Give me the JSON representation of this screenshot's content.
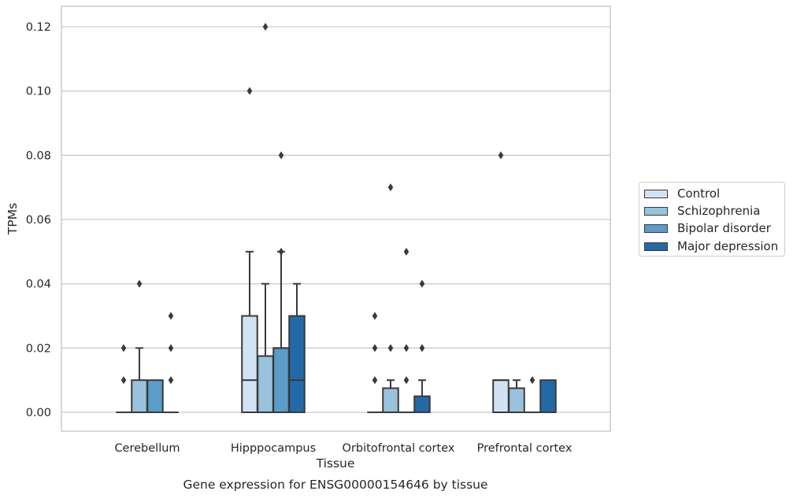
{
  "chart_data": {
    "type": "box",
    "title": "",
    "caption": "Gene expression for ENSG00000154646 by tissue",
    "xlabel": "Tissue",
    "ylabel": "TPMs",
    "ylim": [
      -0.006,
      0.1225
    ],
    "yticks": [
      0.0,
      0.02,
      0.04,
      0.06,
      0.08,
      0.1,
      0.12
    ],
    "ytick_labels": [
      "0.00",
      "0.02",
      "0.04",
      "0.06",
      "0.08",
      "0.10",
      "0.12"
    ],
    "grid": true,
    "legend_position": "right",
    "categories": [
      "Cerebellum",
      "Hipppocampus",
      "Orbitofrontal cortex",
      "Prefrontal cortex"
    ],
    "series": [
      {
        "name": "Control",
        "color": "#d1e2f2",
        "boxes": [
          {
            "q1": 0,
            "median": 0,
            "q3": 0,
            "whisker_low": 0,
            "whisker_high": 0,
            "outliers": [
              0.01,
              0.02
            ]
          },
          {
            "q1": 0,
            "median": 0.01,
            "q3": 0.03,
            "whisker_low": 0,
            "whisker_high": 0.05,
            "outliers": [
              0.1
            ]
          },
          {
            "q1": 0,
            "median": 0,
            "q3": 0,
            "whisker_low": 0,
            "whisker_high": 0,
            "outliers": [
              0.01,
              0.02,
              0.03
            ]
          },
          {
            "q1": 0,
            "median": 0.01,
            "q3": 0.01,
            "whisker_low": 0,
            "whisker_high": 0.01,
            "outliers": [
              0.08
            ]
          }
        ]
      },
      {
        "name": "Schizophrenia",
        "color": "#9ac2dc",
        "boxes": [
          {
            "q1": 0,
            "median": 0,
            "q3": 0.01,
            "whisker_low": 0,
            "whisker_high": 0.02,
            "outliers": [
              0.04
            ]
          },
          {
            "q1": 0,
            "median": 0.0175,
            "q3": 0.0175,
            "whisker_low": 0,
            "whisker_high": 0.04,
            "outliers": [
              0.12
            ]
          },
          {
            "q1": 0,
            "median": 0,
            "q3": 0.0075,
            "whisker_low": 0,
            "whisker_high": 0.01,
            "outliers": [
              0.02,
              0.07
            ]
          },
          {
            "q1": 0,
            "median": 0,
            "q3": 0.0075,
            "whisker_low": 0,
            "whisker_high": 0.01,
            "outliers": []
          }
        ]
      },
      {
        "name": "Bipolar disorder",
        "color": "#5a9dc8",
        "boxes": [
          {
            "q1": 0,
            "median": 0,
            "q3": 0.01,
            "whisker_low": 0,
            "whisker_high": 0.01,
            "outliers": []
          },
          {
            "q1": 0,
            "median": 0.02,
            "q3": 0.02,
            "whisker_low": 0,
            "whisker_high": 0.05,
            "outliers": [
              0.05,
              0.08
            ]
          },
          {
            "q1": 0,
            "median": 0,
            "q3": 0,
            "whisker_low": 0,
            "whisker_high": 0,
            "outliers": [
              0.01,
              0.02,
              0.05
            ]
          },
          {
            "q1": 0,
            "median": 0,
            "q3": 0,
            "whisker_low": 0,
            "whisker_high": 0,
            "outliers": [
              0.01
            ]
          }
        ]
      },
      {
        "name": "Major depression",
        "color": "#2469a7",
        "boxes": [
          {
            "q1": 0,
            "median": 0,
            "q3": 0,
            "whisker_low": 0,
            "whisker_high": 0,
            "outliers": [
              0.01,
              0.02,
              0.03
            ]
          },
          {
            "q1": 0,
            "median": 0.01,
            "q3": 0.03,
            "whisker_low": 0,
            "whisker_high": 0.04,
            "outliers": []
          },
          {
            "q1": 0,
            "median": 0,
            "q3": 0.005,
            "whisker_low": 0,
            "whisker_high": 0.01,
            "outliers": [
              0.02,
              0.04
            ]
          },
          {
            "q1": 0,
            "median": 0,
            "q3": 0.01,
            "whisker_low": 0,
            "whisker_high": 0.01,
            "outliers": []
          }
        ]
      }
    ]
  },
  "colors": {
    "grid": "#cccccc",
    "box_line": "#3a3a3a"
  }
}
